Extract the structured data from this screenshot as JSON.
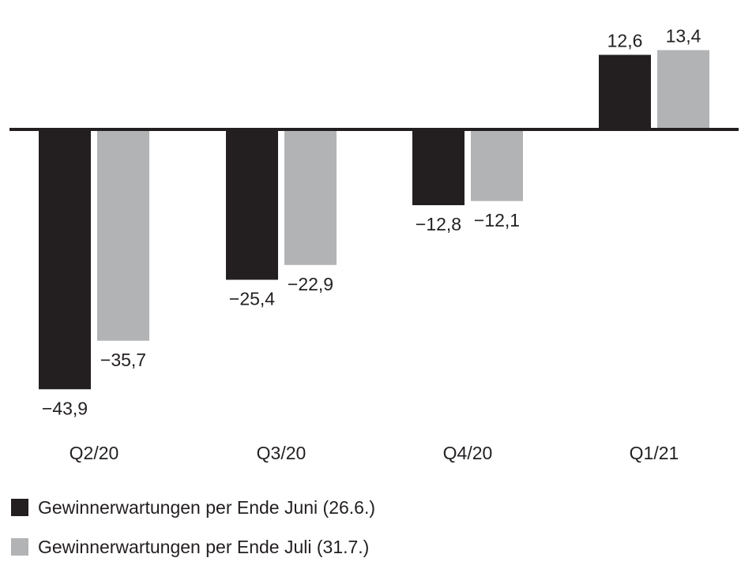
{
  "chart_data": {
    "type": "bar",
    "categories": [
      "Q2/20",
      "Q3/20",
      "Q4/20",
      "Q1/21"
    ],
    "series": [
      {
        "name": "Gewinnerwartungen per Ende Juni (26.6.)",
        "color": "#231f20",
        "values": [
          -43.9,
          -25.4,
          -12.8,
          12.6
        ],
        "labels": [
          "−43,9",
          "−25,4",
          "−12,8",
          "12,6"
        ]
      },
      {
        "name": "Gewinnerwartungen per Ende Juli (31.7.)",
        "color": "#b2b3b5",
        "values": [
          -35.7,
          -22.9,
          -12.1,
          13.4
        ],
        "labels": [
          "−35,7",
          "−22,9",
          "−12,1",
          "13,4"
        ]
      }
    ],
    "title": "",
    "xlabel": "",
    "ylabel": "",
    "grid": false,
    "legend_position": "bottom-left"
  }
}
